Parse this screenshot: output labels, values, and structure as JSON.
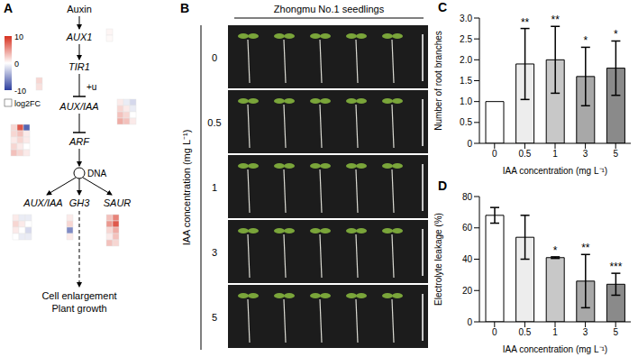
{
  "panel_labels": [
    "A",
    "B",
    "C",
    "D"
  ],
  "diagram": {
    "nodes": {
      "auxin": "Auxin",
      "aux1": "AUX1",
      "tir1": "TIR1",
      "auxiaa": "AUX/IAA",
      "arf": "ARF",
      "dna": "DNA",
      "auxiaa2": "AUX/IAA",
      "gh3": "GH3",
      "saur": "SAUR",
      "outcome": [
        "Cell enlargement",
        "Plant growth"
      ]
    },
    "ubiquitination": "+u",
    "heatmaps": {
      "aux1": [
        [
          0.5
        ],
        [
          0.3
        ]
      ],
      "tir1": [
        [
          2
        ],
        [
          1.5
        ]
      ],
      "auxiaa": [
        [
          1,
          -1,
          -2
        ],
        [
          2,
          1,
          -1
        ],
        [
          3,
          2,
          0
        ],
        [
          4,
          3,
          1
        ]
      ],
      "arf": [
        [
          2,
          8,
          -8
        ],
        [
          2,
          3,
          1
        ],
        [
          1,
          2,
          1
        ],
        [
          2,
          1,
          0
        ],
        [
          3,
          2,
          1
        ]
      ],
      "auxiaa2": [
        [
          1,
          -1,
          -1
        ],
        [
          2,
          1,
          0
        ],
        [
          1,
          0,
          -2
        ],
        [
          0,
          -1,
          -1
        ]
      ],
      "gh3": [
        [
          1
        ],
        [
          2
        ],
        [
          -6
        ],
        [
          1
        ]
      ],
      "saur": [
        [
          3,
          6
        ],
        [
          5,
          8
        ],
        [
          2,
          4
        ],
        [
          1,
          3
        ],
        [
          3,
          2
        ]
      ]
    },
    "colorbar": {
      "range": [
        -10,
        10
      ],
      "ticks": [
        10,
        0,
        -10
      ],
      "label": "log2FC"
    }
  },
  "photo": {
    "title": "Zhongmu No.1 seedlings",
    "y_label": "IAA concentration (mg L⁻¹)",
    "row_labels": [
      "0",
      "0.5",
      "1",
      "3",
      "5"
    ]
  },
  "chart_data": [
    {
      "type": "bar",
      "categories": [
        "0",
        "0.5",
        "1",
        "3",
        "5"
      ],
      "values": [
        1,
        1.9,
        2,
        1.6,
        1.8
      ],
      "errors": [
        0,
        0.85,
        0.8,
        0.7,
        0.65
      ],
      "significance": [
        null,
        "**",
        "**",
        "*",
        "*"
      ],
      "colors": [
        "#ffffff",
        "#ededed",
        "#c8c8c8",
        "#a8a8a8",
        "#8a8a8a"
      ],
      "x_label": "IAA concentration (mg L⁻¹)",
      "y_label": "Number of root branches",
      "ylim": [
        0,
        3
      ],
      "yticks": [
        0,
        0.5,
        {
          "value": 1,
          "label": "1.0"
        },
        1.5,
        {
          "value": 2,
          "label": "2.0"
        },
        2.5,
        {
          "value": 3,
          "label": "3.0"
        }
      ]
    },
    {
      "type": "bar",
      "categories": [
        "0",
        "0.5",
        "1",
        "3",
        "5"
      ],
      "values": [
        68,
        54,
        41,
        26,
        24
      ],
      "errors": [
        5,
        14,
        0.5,
        17,
        7
      ],
      "significance": [
        null,
        null,
        "*",
        "**",
        "***"
      ],
      "colors": [
        "#ffffff",
        "#ededed",
        "#c8c8c8",
        "#a8a8a8",
        "#8a8a8a"
      ],
      "x_label": "IAA concentration (mg L⁻¹)",
      "y_label": "Electrolyte leakage (%)",
      "ylim": [
        0,
        80
      ],
      "yticks": [
        0,
        20,
        40,
        60,
        80
      ]
    }
  ]
}
